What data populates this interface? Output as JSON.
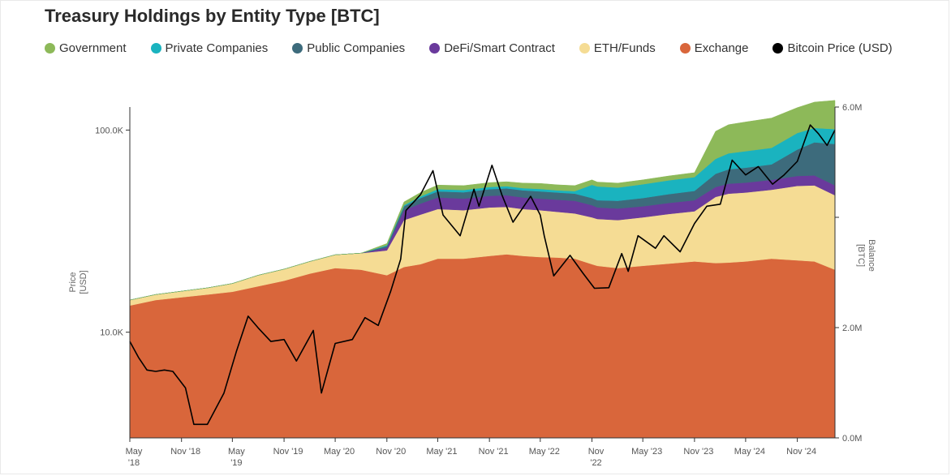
{
  "chart_data": {
    "type": "area",
    "title": "Treasury Holdings by Entity Type [BTC]",
    "stacked": true,
    "left_axis": {
      "label_lines": [
        "Price",
        "[USD]"
      ],
      "scale": "log",
      "range": [
        3000,
        130000
      ],
      "ticks": [
        {
          "value": 10000,
          "label": "10.0K"
        },
        {
          "value": 100000,
          "label": "100.0K"
        }
      ]
    },
    "right_axis": {
      "label_lines": [
        "Balance",
        "[BTC]"
      ],
      "range": [
        0,
        6000000
      ],
      "ticks": [
        {
          "value": 0,
          "label": "0.0M"
        },
        {
          "value": 2000000,
          "label": "2.0M"
        },
        {
          "value": 4000000,
          "label": ""
        },
        {
          "value": 6000000,
          "label": "6.0M"
        }
      ]
    },
    "x_axis": {
      "range": [
        "2018-05-01",
        "2025-03-15"
      ],
      "ticks": [
        {
          "date": "2018-05-01",
          "lines": [
            "May",
            "'18"
          ]
        },
        {
          "date": "2018-11-01",
          "lines": [
            "Nov '18"
          ]
        },
        {
          "date": "2019-05-01",
          "lines": [
            "May",
            "'19"
          ]
        },
        {
          "date": "2019-11-01",
          "lines": [
            "Nov '19"
          ]
        },
        {
          "date": "2020-05-01",
          "lines": [
            "May '20"
          ]
        },
        {
          "date": "2020-11-01",
          "lines": [
            "Nov '20"
          ]
        },
        {
          "date": "2021-05-01",
          "lines": [
            "May '21"
          ]
        },
        {
          "date": "2021-11-01",
          "lines": [
            "Nov '21"
          ]
        },
        {
          "date": "2022-05-01",
          "lines": [
            "May '22"
          ]
        },
        {
          "date": "2022-11-01",
          "lines": [
            "Nov",
            "'22"
          ]
        },
        {
          "date": "2023-05-01",
          "lines": [
            "May '23"
          ]
        },
        {
          "date": "2023-11-01",
          "lines": [
            "Nov '23"
          ]
        },
        {
          "date": "2024-05-01",
          "lines": [
            "May '24"
          ]
        },
        {
          "date": "2024-11-01",
          "lines": [
            "Nov '24"
          ]
        }
      ]
    },
    "dates": [
      "2018-05-01",
      "2018-08-01",
      "2018-11-01",
      "2019-02-01",
      "2019-05-01",
      "2019-08-01",
      "2019-11-01",
      "2020-02-01",
      "2020-05-01",
      "2020-08-01",
      "2020-11-01",
      "2021-01-01",
      "2021-03-01",
      "2021-05-01",
      "2021-08-01",
      "2021-11-01",
      "2022-01-01",
      "2022-03-01",
      "2022-05-01",
      "2022-07-01",
      "2022-09-01",
      "2022-11-01",
      "2022-11-20",
      "2023-02-01",
      "2023-05-01",
      "2023-08-01",
      "2023-11-01",
      "2024-01-15",
      "2024-03-01",
      "2024-05-01",
      "2024-08-01",
      "2024-11-01",
      "2025-01-01",
      "2025-03-15"
    ],
    "series": [
      {
        "name": "Exchange",
        "color": "#d9663b",
        "values": [
          2400000,
          2500000,
          2550000,
          2600000,
          2650000,
          2750000,
          2850000,
          2980000,
          3080000,
          3050000,
          2950000,
          3100000,
          3150000,
          3250000,
          3250000,
          3300000,
          3330000,
          3300000,
          3280000,
          3270000,
          3250000,
          3150000,
          3120000,
          3080000,
          3120000,
          3160000,
          3200000,
          3170000,
          3180000,
          3200000,
          3250000,
          3220000,
          3200000,
          3050000
        ]
      },
      {
        "name": "ETH/Funds",
        "color": "#f5dc94",
        "values": [
          100000,
          100000,
          110000,
          120000,
          150000,
          200000,
          210000,
          220000,
          240000,
          300000,
          450000,
          850000,
          900000,
          900000,
          880000,
          880000,
          860000,
          850000,
          850000,
          830000,
          820000,
          850000,
          850000,
          870000,
          880000,
          900000,
          910000,
          1200000,
          1250000,
          1250000,
          1250000,
          1350000,
          1380000,
          1350000
        ]
      },
      {
        "name": "DeFi/Smart Contract",
        "color": "#6a3a9c",
        "values": [
          0,
          0,
          0,
          0,
          0,
          0,
          0,
          0,
          0,
          0,
          50000,
          180000,
          200000,
          210000,
          210000,
          210000,
          210000,
          210000,
          210000,
          220000,
          230000,
          220000,
          210000,
          210000,
          200000,
          200000,
          200000,
          180000,
          180000,
          180000,
          180000,
          180000,
          180000,
          180000
        ]
      },
      {
        "name": "Public Companies",
        "color": "#3d6b7c",
        "values": [
          0,
          0,
          0,
          0,
          0,
          0,
          0,
          0,
          0,
          0,
          30000,
          70000,
          100000,
          110000,
          115000,
          120000,
          125000,
          130000,
          130000,
          130000,
          130000,
          130000,
          130000,
          140000,
          150000,
          160000,
          170000,
          240000,
          260000,
          270000,
          280000,
          480000,
          600000,
          750000
        ]
      },
      {
        "name": "Private Companies",
        "color": "#1ab3bf",
        "values": [
          0,
          0,
          0,
          0,
          0,
          0,
          0,
          0,
          0,
          0,
          15000,
          20000,
          30000,
          40000,
          40000,
          40000,
          40000,
          40000,
          45000,
          40000,
          45000,
          240000,
          250000,
          240000,
          250000,
          250000,
          250000,
          270000,
          290000,
          300000,
          300000,
          300000,
          260000,
          270000
        ]
      },
      {
        "name": "Government",
        "color": "#8db959",
        "values": [
          0,
          0,
          0,
          0,
          0,
          0,
          0,
          0,
          0,
          0,
          30000,
          60000,
          70000,
          75000,
          80000,
          80000,
          80000,
          90000,
          100000,
          100000,
          100000,
          90000,
          80000,
          80000,
          80000,
          80000,
          80000,
          500000,
          520000,
          530000,
          540000,
          460000,
          470000,
          520000
        ]
      }
    ],
    "price_series": {
      "name": "Bitcoin Price (USD)",
      "color": "#000000",
      "dates": [
        "2018-05-01",
        "2018-06-01",
        "2018-07-01",
        "2018-08-01",
        "2018-09-01",
        "2018-10-01",
        "2018-11-15",
        "2018-12-15",
        "2019-02-01",
        "2019-04-01",
        "2019-05-15",
        "2019-06-26",
        "2019-08-01",
        "2019-09-15",
        "2019-11-01",
        "2019-12-15",
        "2020-02-13",
        "2020-03-13",
        "2020-05-01",
        "2020-07-01",
        "2020-08-15",
        "2020-10-01",
        "2020-11-15",
        "2020-12-20",
        "2021-01-08",
        "2021-03-01",
        "2021-04-14",
        "2021-05-20",
        "2021-07-20",
        "2021-09-07",
        "2021-09-25",
        "2021-11-10",
        "2021-12-15",
        "2022-01-24",
        "2022-03-28",
        "2022-05-01",
        "2022-05-15",
        "2022-06-18",
        "2022-08-15",
        "2022-10-01",
        "2022-11-10",
        "2022-12-31",
        "2023-02-15",
        "2023-03-10",
        "2023-04-14",
        "2023-06-15",
        "2023-07-15",
        "2023-09-11",
        "2023-11-01",
        "2023-12-15",
        "2024-02-01",
        "2024-03-14",
        "2024-05-01",
        "2024-06-15",
        "2024-08-05",
        "2024-09-15",
        "2024-11-01",
        "2024-12-17",
        "2025-01-15",
        "2025-02-15",
        "2025-03-15"
      ],
      "values": [
        9000,
        7500,
        6500,
        6400,
        6500,
        6400,
        5300,
        3500,
        3500,
        5000,
        8000,
        12000,
        10500,
        9000,
        9200,
        7200,
        10200,
        5000,
        8800,
        9200,
        11800,
        10800,
        16000,
        23000,
        40000,
        48000,
        63000,
        38000,
        30000,
        51000,
        42000,
        67000,
        48000,
        35000,
        47000,
        38000,
        30000,
        19000,
        24000,
        19500,
        16500,
        16600,
        24500,
        20000,
        30000,
        26000,
        30000,
        25000,
        34500,
        42000,
        43000,
        71000,
        60000,
        66000,
        54000,
        60000,
        70000,
        106000,
        96000,
        84000,
        100000
      ]
    }
  }
}
